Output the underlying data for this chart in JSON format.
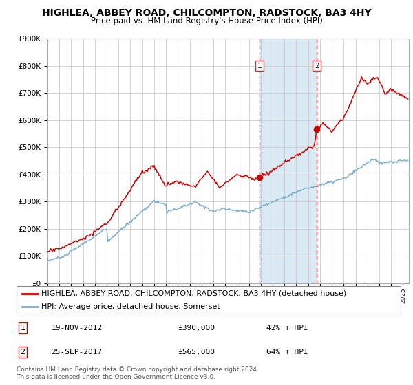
{
  "title": "HIGHLEA, ABBEY ROAD, CHILCOMPTON, RADSTOCK, BA3 4HY",
  "subtitle": "Price paid vs. HM Land Registry's House Price Index (HPI)",
  "ylim": [
    0,
    900000
  ],
  "yticks": [
    0,
    100000,
    200000,
    300000,
    400000,
    500000,
    600000,
    700000,
    800000,
    900000
  ],
  "ytick_labels": [
    "£0",
    "£100K",
    "£200K",
    "£300K",
    "£400K",
    "£500K",
    "£600K",
    "£700K",
    "£800K",
    "£900K"
  ],
  "house_color": "#cc0000",
  "hpi_color": "#7aadcf",
  "background_color": "#ffffff",
  "plot_bg_color": "#ffffff",
  "grid_color": "#cccccc",
  "shade_color": "#daeaf5",
  "purchase1_date": 2012.88,
  "purchase1_price": 390000,
  "purchase2_date": 2017.73,
  "purchase2_price": 565000,
  "label1_price": 800000,
  "label2_price": 800000,
  "legend_house": "HIGHLEA, ABBEY ROAD, CHILCOMPTON, RADSTOCK, BA3 4HY (detached house)",
  "legend_hpi": "HPI: Average price, detached house, Somerset",
  "note1_label": "1",
  "note1_date": "19-NOV-2012",
  "note1_price": "£390,000",
  "note1_hpi": "42% ↑ HPI",
  "note2_label": "2",
  "note2_date": "25-SEP-2017",
  "note2_price": "£565,000",
  "note2_hpi": "64% ↑ HPI",
  "footer": "Contains HM Land Registry data © Crown copyright and database right 2024.\nThis data is licensed under the Open Government Licence v3.0.",
  "title_fontsize": 10,
  "subtitle_fontsize": 8.5,
  "tick_fontsize": 7.5,
  "legend_fontsize": 8
}
